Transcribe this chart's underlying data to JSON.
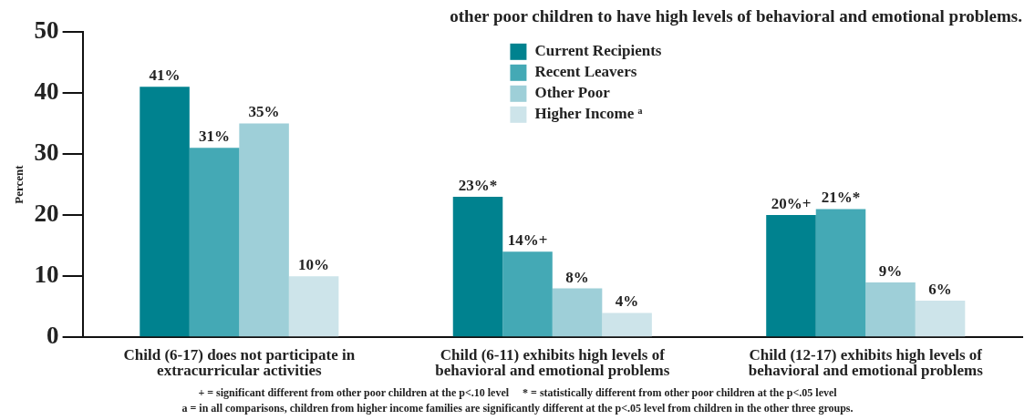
{
  "chart_data": {
    "type": "bar",
    "title": "other poor children to have high levels of behavioral and emotional problems.",
    "ylabel": "Percent",
    "categories": [
      "Child (6-17) does not participate in extracurricular activities",
      "Child (6-11) exhibits high levels of behavioral and emotional problems",
      "Child (12-17) exhibits high levels of behavioral and emotional problems"
    ],
    "series": [
      {
        "name": "Current Recipients",
        "color": "#00828f",
        "values": [
          41,
          23,
          20
        ],
        "value_labels": [
          "41%",
          "23%*",
          "20%+"
        ]
      },
      {
        "name": "Recent Leavers",
        "color": "#44a9b5",
        "values": [
          31,
          14,
          21
        ],
        "value_labels": [
          "31%",
          "14%+",
          "21%*"
        ]
      },
      {
        "name": "Other Poor",
        "color": "#9ecfd8",
        "values": [
          35,
          8,
          9
        ],
        "value_labels": [
          "35%",
          "8%",
          "9%"
        ]
      },
      {
        "name": "Higher Income ᵃ",
        "color": "#cde4ea",
        "values": [
          10,
          4,
          6
        ],
        "value_labels": [
          "10%",
          "4%",
          "6%"
        ]
      }
    ],
    "ylim": [
      0,
      50
    ],
    "yticks": [
      0,
      10,
      20,
      30,
      40,
      50
    ],
    "grid": false,
    "legend": "top",
    "annotations": [
      "+ = significant different from other poor children at the p<.10 level     * = statistically different from other poor children at the p<.05 level",
      "a = in all comparisons, children from higher income families are significantly different at the p<.05 level from children in the other three groups."
    ]
  }
}
